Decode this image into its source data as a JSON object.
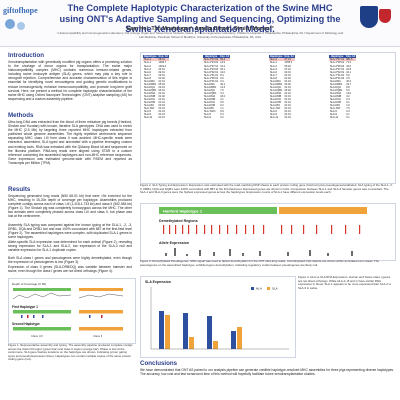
{
  "header": {
    "logo_text": "giftofhope",
    "title": "The Complete Haplotypic Characterization of the Swine MHC using ONT's Adaptive Sampling and Sequencing, Optimizing the Swine Xenotransplantation Model.",
    "authors": "Sam Ho¹, Tim Mosbruger², Amelia Dinou², Dimitri Monos²³",
    "affiliations": "¹ Histocompatibility and Immunogenetics Laboratory, Gift of Hope Organ and Tissue Donor Network, Itasca, IL  ² Immunogenetics Laboratory, Children's Hospital of Philadelphia, Philadelphia, PA  ³ Department of Pathology and Lab Medicine, Perelman School of Medicine, University of Pennsylvania, Philadelphia, PA, USA"
  },
  "sections": {
    "introduction": {
      "heading": "Introduction",
      "text": "Xenotransplantation with genetically modified pig organs offers a promising solution to the shortage of donor organs for transplantation. The swine major histocompatibility complex (MHC) contains numerous immune-related genes, including swine leukocyte antigen (SLA) genes, which may play a key role in xenograft rejection. Comprehensive and accurate characterization of this region is essential for identifying novel xenoantigens and guiding genetic modifications to reduce immunogenicity, enhance immunocompatibility, and promote long-term graft survival. Here, we present a method for complete haplotypic characterization of the swine MHC using Oxford Nanopore Technologies' (ONT) adaptive sampling (AS) for sequencing and a custom assembly pipeline."
    },
    "methods": {
      "heading": "Methods",
      "text": "Ultra-long DNA was extracted from the blood of three miniature pig breeds (Hanford, Sinclair and Yucatan) with known, iterative SLA genotypes. DNA was used to enrich the MHC (2.5 Mb) by targeting three reported MHC haplotypes extracted from published whole genome assemblies. The highly repetitive centromeric sequence separating MHC class I-III from class II was avoided. MHC-specific reads were extracted, assembled, SLA typed and annotated with a pipeline leveraging custom and existing tools. RNA was extracted with the QIAamp Blood kit and sequenced on the Illumina platform. RNA-seq reads were aligned using STAR to a custom reference containing the assembled haplotypes and non-MHC reference sequences. Gene expression was estimated genome-wide with RSEM and reported as Transcripts per Million (TPM)."
    },
    "results": {
      "heading": "Results",
      "p1": "Sequencing generated long reads (N50 68-91 kb) that were >5x enriched for the MHC, resulting in 15-30x depth of coverage per haplotype. Assemblies produced complete contigs across each of class I-III (1,418-1,733 kb) and class II (562-584 kb) (Figure 1). The Sinclair pig was completely homozygous across the MHC. The other two animals were completely phased across class I-III and class II, but phase was lost at the centromere.",
      "p2": "Assembly SLA typing was compared against the known typing at the SLA-1, -2, -3, DRB1, DQA and DRB1 loci and was 100% concordant with 88T at the first-field level (Figure 2). The assembled haplotypes were complex, with duplicated SLA-1 genes in some haplotypes.",
      "p3": "Allele-specific SLA expression was determined for each animal (Figure 2), revealing strong expression for SLA-1 and SLA-2, low expression of the SLA-3 null and variable expression for SLA-1 duplicate copies.",
      "p4": "Both SLA class I genes and pseudogenes were highly demethylated, even though the expression of pseudogenes is low (Figure 3).",
      "p5": "Expression of class II genes (SLA-DRB/DQ) was variable between hamster and swine, even though the class I genes are not direct orthologs (Figure 4)."
    },
    "conclusions": {
      "heading": "Conclusions",
      "text": "We have demonstrated that ONT AS paired to our analysis pipeline can generate credible haplotype-resolved MHC assemblies for three pigs representing diverse haplotypes. The accuracy, low cost and fast turnaround time of this method will hopefully facilitate future xenotransplantation studies."
    }
  },
  "figure1": {
    "caption": "Figure 1. Representative assembly and typing. The assembly pipeline produced complete contigs across the class I/III region (green bar) and class II region (orange bar). Phase is lost at the centromere. SLA gene hashes locations on the haplotype are shown, indicating primer gating types and pseudo/expression (blue). Haplotypes can contain multiple copies of the same protein coding gene (red).",
    "depth_label": "Depth of Coverage (X 60)",
    "first_haplo_label": "First Haplotype 1",
    "second_haplo_label": "Second Haplotype",
    "class_labels": [
      "Class I-III",
      "Class II"
    ]
  },
  "figure2": {
    "caption": "Figure 2. SLA Typing and Expression. Expression was estimated with the read-matching RNP sheets to each protein coding gene (bold loci) plus pseudogenes/unlabeled. SLA typing of the SLA-1, 2, 3, DRB1, DQA and DQB1 were 100% concordant with 88T at the first-field level. Expressed genes are shown in bold. Comparison between SLA-1 and SLA-2 hamster genes was concordant. The SLA-1 and SLA-3 genes were the highest expressed genes across the haplotypes. Expression counts of SLA-1 have different expression levels each.",
    "tables": [
      {
        "header": [
          "Haplotype",
          "Exp. lvl"
        ],
        "rows": [
          [
            "SLA-1",
            "08:01",
            "hl"
          ],
          [
            "SLA-1",
            "1063.7",
            ""
          ],
          [
            "SLA-2",
            "1001.0",
            ""
          ],
          [
            "SLA-3",
            "04:01",
            ""
          ],
          [
            "SLA-6",
            "02:01",
            ""
          ],
          [
            "SLA-7",
            "02:01",
            ""
          ],
          [
            "SLA-8",
            "01:02",
            ""
          ],
          [
            "SLA-DRA",
            "01:01",
            ""
          ],
          [
            "SLA-DRB1",
            "05:03",
            ""
          ],
          [
            "SLA-DQA",
            "02:01",
            ""
          ],
          [
            "SLA-DQB1",
            "04:01",
            ""
          ],
          [
            "SLA-DMA",
            "01:01",
            ""
          ],
          [
            "SLA-DMB",
            "01:02",
            ""
          ],
          [
            "SLA-DOA",
            "01:01",
            ""
          ],
          [
            "SLA-DOB",
            "01:01",
            ""
          ],
          [
            "SLA-MIC",
            "02:03",
            ""
          ],
          [
            "SLA-TAP",
            "01:01",
            ""
          ],
          [
            "SLA-5",
            "01:01",
            ""
          ],
          [
            "SLA-9",
            "01:01",
            ""
          ],
          [
            "SLA-11",
            "01:01",
            ""
          ]
        ]
      },
      {
        "header": [
          "Haplotype",
          "Exp. lvl"
        ],
        "rows": [
          [
            "SLA-1*07:02",
            "65.4",
            "hl"
          ],
          [
            "SLA-1*04:02",
            "14.9",
            ""
          ],
          [
            "SLA-2*07:01",
            "31.2",
            ""
          ],
          [
            "SLA-3*04:03",
            "26.1",
            ""
          ],
          [
            "SLA-6*02:01",
            "12.0",
            ""
          ],
          [
            "SLA-1*01:01",
            "8.4",
            ""
          ],
          [
            "SLA-1*05:01",
            "0.6",
            ""
          ],
          [
            "SLA-8*01:01",
            "0.4",
            ""
          ],
          [
            "SLA-DRA",
            "42.1",
            ""
          ],
          [
            "SLA-DRB1",
            "12.3",
            ""
          ],
          [
            "SLA-DQA",
            "7.0",
            ""
          ],
          [
            "SLA-DQB1",
            "3.3",
            ""
          ],
          [
            "SLA-DMA",
            "18.2",
            ""
          ],
          [
            "SLA-DMB",
            "4.1",
            ""
          ],
          [
            "SLA-DOA",
            "0.5",
            ""
          ],
          [
            "SLA-DOB",
            "0.2",
            ""
          ],
          [
            "SLA-MIC",
            "1.1",
            ""
          ],
          [
            "SLA-TAP1",
            "9.9",
            ""
          ],
          [
            "SLA-5",
            "0.4",
            ""
          ],
          [
            "SLA-9",
            "0.2",
            ""
          ]
        ]
      },
      {
        "header": [
          "Haplotype",
          "Exp. lvl"
        ],
        "rows": [
          [
            "SLA-1",
            "07:01",
            "hl"
          ],
          [
            "SLA-1",
            "1055.3",
            ""
          ],
          [
            "SLA-2",
            "05:02",
            ""
          ],
          [
            "SLA-3",
            "07:01",
            ""
          ],
          [
            "SLA-6",
            "02:01",
            ""
          ],
          [
            "SLA-7",
            "01:01",
            ""
          ],
          [
            "SLA-8",
            "01:02",
            ""
          ],
          [
            "SLA-DRA",
            "01:01",
            ""
          ],
          [
            "SLA-DRB1",
            "04:02",
            ""
          ],
          [
            "SLA-DQA",
            "01:01",
            ""
          ],
          [
            "SLA-DQB1",
            "02:02",
            ""
          ],
          [
            "SLA-DMA",
            "01:01",
            ""
          ],
          [
            "SLA-DMB",
            "01:01",
            ""
          ],
          [
            "SLA-DOA",
            "01:01",
            ""
          ],
          [
            "SLA-DOB",
            "01:01",
            ""
          ],
          [
            "SLA-MIC",
            "01:01",
            ""
          ],
          [
            "SLA-TAP",
            "01:01",
            ""
          ],
          [
            "SLA-5",
            "01:01",
            ""
          ],
          [
            "SLA-9",
            "01:01",
            ""
          ],
          [
            "SLA-11",
            "01:01",
            ""
          ]
        ]
      },
      {
        "header": [
          "Haplotype",
          "Exp. lvl"
        ],
        "rows": [
          [
            "SLA-1*07:01",
            "881.5",
            "hl"
          ],
          [
            "SLA-1*08:01",
            "71.3",
            ""
          ],
          [
            "SLA-2*05:02",
            "32.0",
            ""
          ],
          [
            "SLA-3*07:01",
            "22.8",
            ""
          ],
          [
            "SLA-6*02:01",
            "10.1",
            ""
          ],
          [
            "SLA-7*01:01",
            "6.6",
            ""
          ],
          [
            "SLA-8*01:02",
            "2.5",
            ""
          ],
          [
            "SLA-DRA",
            "40.4",
            ""
          ],
          [
            "SLA-DRB1",
            "19.7",
            ""
          ],
          [
            "SLA-DQA",
            "8.8",
            ""
          ],
          [
            "SLA-DQB1",
            "5.0",
            ""
          ],
          [
            "SLA-DMA",
            "14.6",
            ""
          ],
          [
            "SLA-DMB",
            "3.2",
            ""
          ],
          [
            "SLA-DOA",
            "0.4",
            ""
          ],
          [
            "SLA-DOB",
            "0.1",
            ""
          ],
          [
            "SLA-MIC",
            "1.9",
            ""
          ],
          [
            "SLA-TAP",
            "7.5",
            ""
          ],
          [
            "SLA-5",
            "0.3",
            ""
          ],
          [
            "SLA-9",
            "0.1",
            ""
          ],
          [
            "SLA-11",
            "0.1",
            ""
          ]
        ]
      }
    ]
  },
  "figure3": {
    "title": "Hanford Haplotype 1",
    "label_demethylated": "Demethylated Regions",
    "label_allele": "Allele Expression",
    "caption": "Figure 3. Demethylated Pseudogenes. SMC signal was used to detect demethylation for the ONT ultra-long reads. Unmethylated CpG islands are shown within annotated exon areas. The pseudogenes on the assembled haplotype, exhibited gene demethylation, indicating regulatory marks between pseudogenes are likely null."
  },
  "figure4": {
    "title": "SLA Expression",
    "caption": "Figure 4. HLA vs SLA RNA Expression. Human and Swine class I genes are not direct orthologs. While HLA-A, B and C have similar RNA expression in blood, SLA-1 appears to be more expressed than SLA-2 or SLA-3 in swine.",
    "legend": [
      "HLA",
      "SLA"
    ]
  },
  "colors": {
    "title": "#2b3e8c",
    "table_header": "#2c4fa0",
    "class13_bar": "#6bbf59",
    "class2_bar": "#f0a23b",
    "demethylated": "#d9362b",
    "allele_bar": "#6b6b6b",
    "highlight_row": "#f3c6c6"
  }
}
